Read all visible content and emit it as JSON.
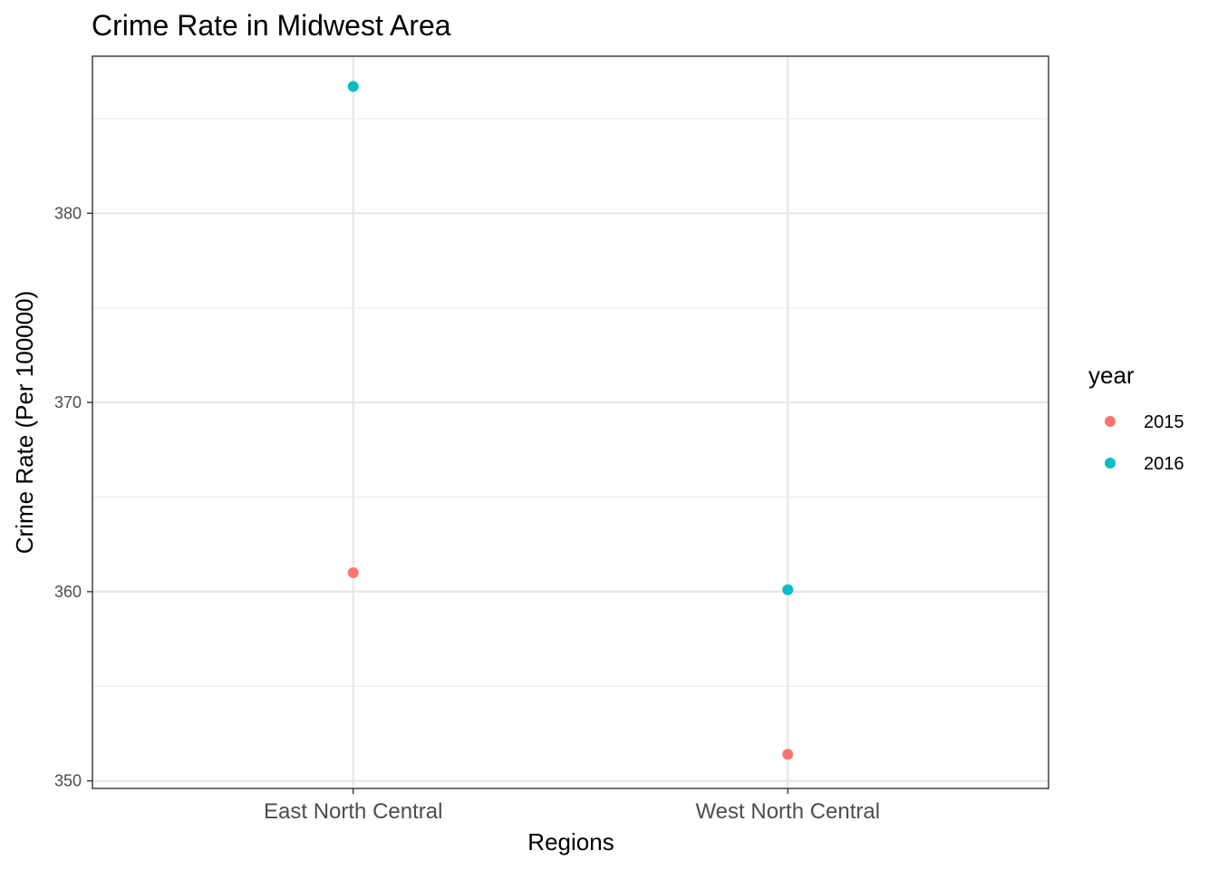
{
  "chart_data": {
    "type": "scatter",
    "title": "Crime Rate in Midwest Area",
    "xlabel": "Regions",
    "ylabel": "Crime Rate (Per 100000)",
    "categories": [
      "East North Central",
      "West North Central"
    ],
    "ylim": [
      349.6,
      388.3
    ],
    "yticks": [
      350,
      360,
      370,
      380
    ],
    "yticks_minor": [
      355,
      365,
      375,
      385
    ],
    "grid": true,
    "legend": {
      "title": "year",
      "position": "right"
    },
    "series": [
      {
        "name": "2015",
        "color": "#F8766D",
        "values": [
          361.0,
          351.4
        ]
      },
      {
        "name": "2016",
        "color": "#00BFC4",
        "values": [
          386.7,
          360.1
        ]
      }
    ]
  }
}
